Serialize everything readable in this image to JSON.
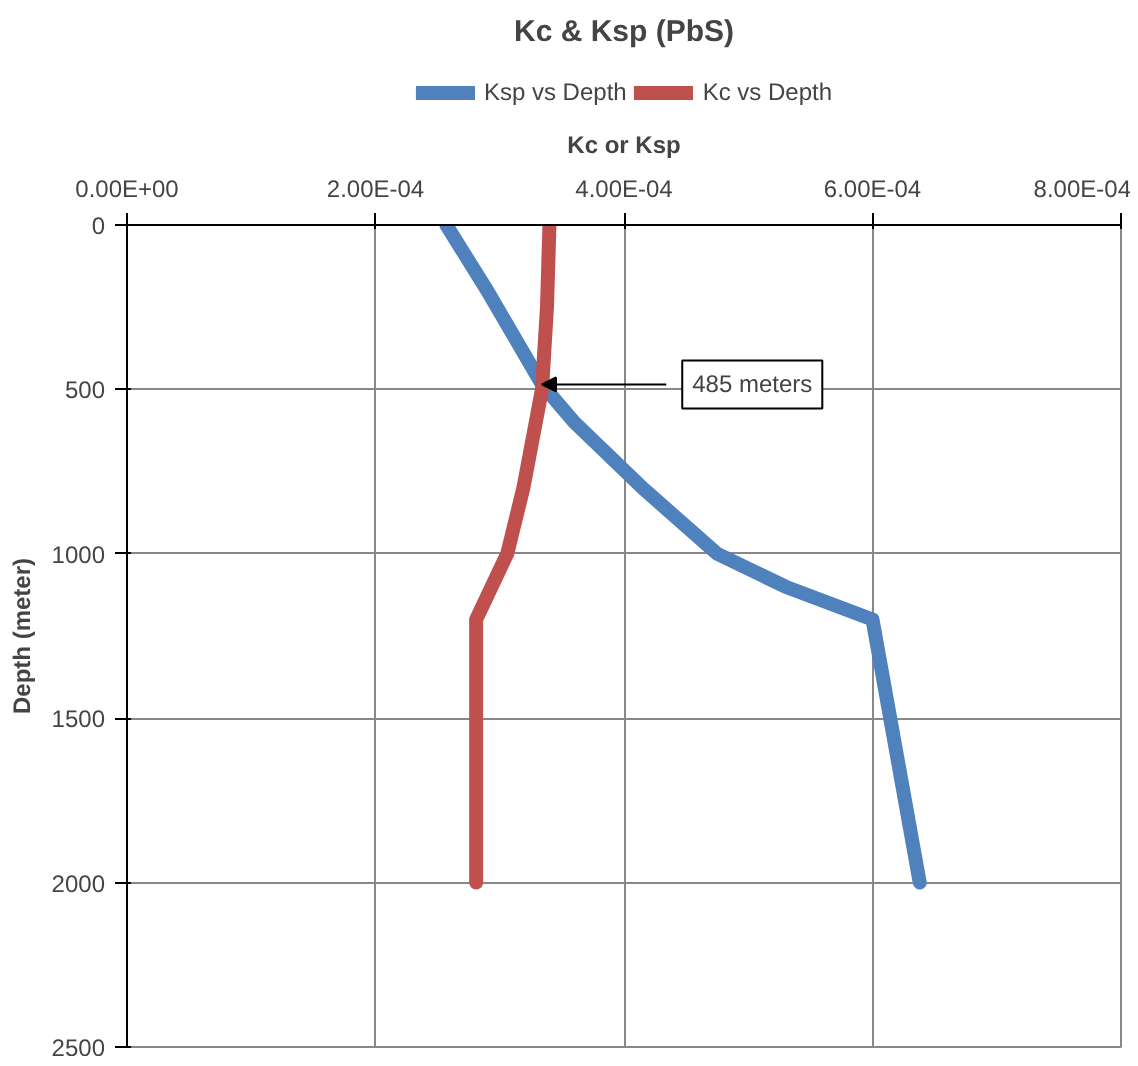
{
  "chart_data": {
    "type": "line",
    "title": "Kc & Ksp (PbS)",
    "xlabel": "Kc or Ksp",
    "ylabel": "Depth (meter)",
    "series": [
      {
        "name": "Ksp vs Depth",
        "color": "#4f81bd",
        "x": [
          0.000257,
          0.00029,
          0.000334,
          0.00036,
          0.000415,
          0.000475,
          0.00053,
          0.0006,
          0.000638
        ],
        "values": [
          0,
          200,
          485,
          600,
          800,
          1000,
          1100,
          1200,
          2000
        ]
      },
      {
        "name": "Kc vs Depth",
        "color": "#c0504d",
        "x": [
          0.00034,
          0.000338,
          0.000334,
          0.000319,
          0.000306,
          0.000281,
          0.000281
        ],
        "values": [
          0,
          250,
          500,
          800,
          1000,
          1200,
          2000
        ]
      }
    ],
    "annotations": [
      {
        "text": "485 meters",
        "x": 0.000334,
        "y": 485
      }
    ],
    "xlim": [
      0,
      0.0008
    ],
    "xticks": [
      {
        "value": 0,
        "label": "0.00E+00"
      },
      {
        "value": 0.0002,
        "label": "2.00E-04"
      },
      {
        "value": 0.0004,
        "label": "4.00E-04"
      },
      {
        "value": 0.0006,
        "label": "6.00E-04"
      },
      {
        "value": 0.0008,
        "label": "8.00E-04"
      }
    ],
    "ylim": [
      2500,
      0
    ],
    "yticks": [
      0,
      500,
      1000,
      1500,
      2000,
      2500
    ],
    "grid": true,
    "legend": "top",
    "line_style": "solid"
  }
}
